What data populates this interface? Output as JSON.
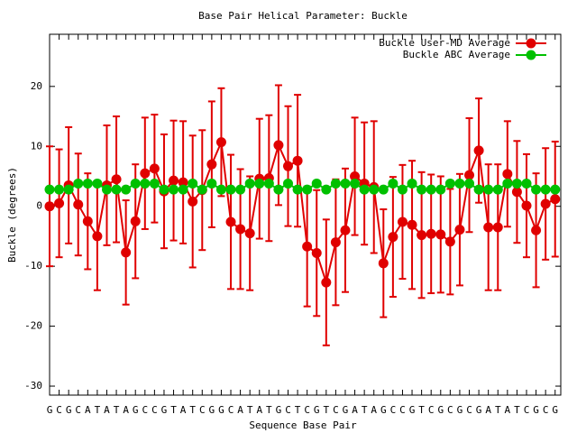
{
  "chart_data": {
    "type": "line",
    "title": "Base Pair Helical Parameter: Buckle",
    "x_label": "Sequence Base Pair",
    "y_label": "Buckle (degrees)",
    "categories": [
      "G",
      "C",
      "G",
      "C",
      "A",
      "T",
      "A",
      "T",
      "A",
      "G",
      "C",
      "C",
      "G",
      "T",
      "A",
      "T",
      "C",
      "G",
      "G",
      "C",
      "A",
      "T",
      "A",
      "T",
      "G",
      "C",
      "T",
      "C",
      "G",
      "T",
      "C",
      "G",
      "A",
      "T",
      "A",
      "G",
      "C",
      "C",
      "G",
      "T",
      "C",
      "G",
      "C",
      "G",
      "C",
      "G",
      "A",
      "T",
      "A",
      "T",
      "C",
      "G",
      "C",
      "G"
    ],
    "series": [
      {
        "name": "Buckle User-MD Average",
        "color": "#e00000",
        "values": [
          0,
          0.5,
          3.5,
          0.3,
          -2.5,
          -5,
          3.5,
          4.5,
          -7.7,
          -2.5,
          5.5,
          6.3,
          2.5,
          4.3,
          4.0,
          0.8,
          2.7,
          7.0,
          10.7,
          -2.6,
          -3.8,
          -4.5,
          4.6,
          4.7,
          10.2,
          6.7,
          7.6,
          -6.7,
          -7.8,
          -12.7,
          -6.0,
          -4.0,
          5.0,
          3.8,
          3.2,
          -9.5,
          -5.1,
          -2.6,
          -3.1,
          -4.8,
          -4.6,
          -4.7,
          -5.9,
          -3.9,
          5.2,
          9.3,
          -3.5,
          -3.5,
          5.4,
          2.4,
          0.1,
          -4.0,
          0.4,
          1.2
        ],
        "errors": [
          10,
          9,
          9.7,
          8.5,
          8,
          9,
          10,
          10.5,
          8.7,
          9.5,
          9.3,
          9,
          9.5,
          10,
          10.2,
          11,
          10,
          10.5,
          9,
          11.2,
          10,
          9.5,
          10,
          10.5,
          10,
          10,
          11,
          10,
          10.5,
          10.5,
          10.5,
          10.3,
          9.8,
          10.2,
          11,
          9,
          10,
          9.5,
          10.7,
          10.5,
          9.9,
          9.7,
          8.8,
          9.3,
          9.5,
          8.7,
          10.5,
          10.5,
          8.8,
          8.5,
          8.6,
          9.5,
          9.3,
          9.6
        ]
      },
      {
        "name": "Buckle ABC Average",
        "color": "#00c000",
        "values": [
          2.8,
          2.8,
          2.8,
          3.8,
          3.8,
          3.8,
          2.8,
          2.8,
          2.8,
          3.8,
          3.8,
          3.8,
          2.8,
          2.8,
          2.8,
          3.8,
          2.8,
          3.8,
          2.8,
          2.8,
          2.8,
          3.8,
          3.8,
          3.8,
          2.8,
          3.8,
          2.8,
          2.8,
          3.8,
          2.8,
          3.8,
          3.8,
          3.8,
          2.8,
          2.8,
          2.8,
          3.8,
          2.8,
          3.8,
          2.8,
          2.8,
          2.8,
          3.8,
          3.8,
          3.8,
          2.8,
          2.8,
          2.8,
          3.8,
          3.8,
          3.8,
          2.8,
          2.8,
          2.8
        ]
      }
    ],
    "ylim": [
      -31.5,
      28.7
    ],
    "yticks": [
      -30,
      -20,
      -10,
      0,
      10,
      20
    ],
    "legend": "upper right"
  }
}
